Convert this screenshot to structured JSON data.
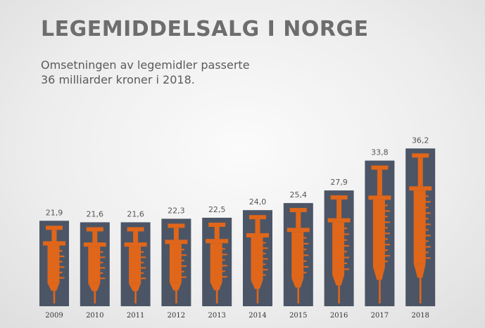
{
  "chart_data": {
    "type": "bar",
    "title": "LEGEMIDDELSALG I NORGE",
    "subtitle_lines": [
      "Omsetningen av legemidler passerte",
      "36 milliarder kroner i 2018."
    ],
    "categories": [
      "2009",
      "2010",
      "2011",
      "2012",
      "2013",
      "2014",
      "2015",
      "2016",
      "2017",
      "2018"
    ],
    "values": [
      21.9,
      21.6,
      21.6,
      22.3,
      22.5,
      24.0,
      25.4,
      27.9,
      33.8,
      36.2
    ],
    "value_labels": [
      "21,9",
      "21,6",
      "21,6",
      "22,3",
      "22,5",
      "24,0",
      "25,4",
      "27,9",
      "33,8",
      "36,2"
    ],
    "xlabel": "",
    "ylabel": "",
    "grid": false,
    "legend": "none",
    "colors": {
      "bar": "#4b5566",
      "syringe": "#e0661a"
    }
  }
}
